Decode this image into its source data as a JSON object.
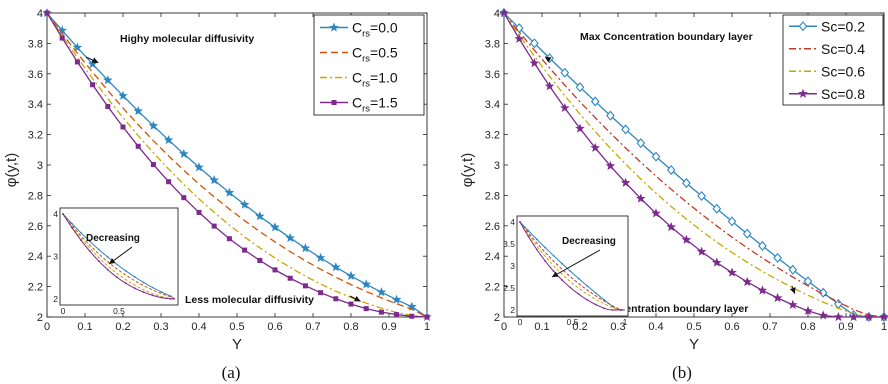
{
  "chart_data": [
    {
      "type": "line",
      "panel_label": "(a)",
      "xlabel": "Y",
      "ylabel": "φ(y,t)",
      "xlim": [
        0,
        1
      ],
      "ylim": [
        2,
        4
      ],
      "x_ticks": [
        0,
        0.1,
        0.2,
        0.3,
        0.4,
        0.5,
        0.6,
        0.7,
        0.8,
        0.9,
        1
      ],
      "x_tick_labels": [
        "0",
        "0.1",
        "0.2",
        "0.3",
        "0.4",
        "0.5",
        "0.6",
        "0.7",
        "0.8",
        "0.9",
        "1"
      ],
      "y_ticks": [
        2,
        2.2,
        2.4,
        2.6,
        2.8,
        3,
        3.2,
        3.4,
        3.6,
        3.8,
        4
      ],
      "y_tick_labels": [
        "2",
        "2.2",
        "2.4",
        "2.6",
        "2.8",
        "3",
        "3.2",
        "3.4",
        "3.6",
        "3.8",
        "4"
      ],
      "grid": false,
      "legend_position": "top-right",
      "x": [
        0,
        0.04,
        0.08,
        0.12,
        0.16,
        0.2,
        0.24,
        0.28,
        0.32,
        0.36,
        0.4,
        0.44,
        0.48,
        0.52,
        0.56,
        0.6,
        0.64,
        0.68,
        0.72,
        0.76,
        0.8,
        0.84,
        0.88,
        0.92,
        0.96,
        1
      ],
      "series": [
        {
          "legend_main": "C",
          "legend_sub": "rs",
          "legend_value": "=0.0",
          "color": "#2e86c1",
          "dash": "",
          "marker": "star",
          "values": [
            4.0,
            3.885,
            3.773,
            3.664,
            3.558,
            3.455,
            3.355,
            3.258,
            3.164,
            3.073,
            2.985,
            2.9,
            2.818,
            2.739,
            2.663,
            2.59,
            2.52,
            2.453,
            2.389,
            2.328,
            2.27,
            2.215,
            2.163,
            2.114,
            2.068,
            2.0
          ]
        },
        {
          "legend_main": "C",
          "legend_sub": "rs",
          "legend_value": "=0.5",
          "color": "#d35400",
          "dash": "7,4",
          "marker": "none",
          "values": [
            4.0,
            3.865,
            3.735,
            3.61,
            3.49,
            3.375,
            3.265,
            3.16,
            3.06,
            2.965,
            2.875,
            2.79,
            2.71,
            2.634,
            2.562,
            2.494,
            2.43,
            2.37,
            2.314,
            2.262,
            2.213,
            2.168,
            2.126,
            2.087,
            2.051,
            2.0
          ]
        },
        {
          "legend_main": "C",
          "legend_sub": "rs",
          "legend_value": "=1.0",
          "color": "#c9a800",
          "dash": "7,3,2,3",
          "marker": "none",
          "values": [
            4.0,
            3.85,
            3.706,
            3.568,
            3.437,
            3.312,
            3.193,
            3.08,
            2.973,
            2.872,
            2.777,
            2.688,
            2.605,
            2.527,
            2.455,
            2.388,
            2.326,
            2.269,
            2.217,
            2.17,
            2.128,
            2.091,
            2.058,
            2.03,
            2.01,
            2.0
          ]
        },
        {
          "legend_main": "C",
          "legend_sub": "rs",
          "legend_value": "=1.5",
          "color": "#7d2a8c",
          "dash": "",
          "marker": "square",
          "values": [
            4.0,
            3.835,
            3.678,
            3.528,
            3.385,
            3.25,
            3.123,
            3.003,
            2.89,
            2.785,
            2.688,
            2.598,
            2.515,
            2.44,
            2.372,
            2.31,
            2.255,
            2.205,
            2.16,
            2.12,
            2.085,
            2.055,
            2.032,
            2.016,
            2.005,
            2.0
          ]
        }
      ],
      "annotations": [
        {
          "text": "Highy molecular diffusivity",
          "target_x": 0.13,
          "target_y": 3.66
        },
        {
          "text": "Less molecular diffusivity",
          "target_x": 0.82,
          "target_y": 2.09
        }
      ],
      "inset": {
        "xlim": [
          0,
          1
        ],
        "ylim": [
          2,
          4
        ],
        "x_tick_labels": [
          "0",
          "0.5"
        ],
        "y_tick_labels": [
          "2",
          "3",
          "4"
        ],
        "annotation": "Decreasing"
      }
    },
    {
      "type": "line",
      "panel_label": "(b)",
      "xlabel": "Y",
      "ylabel": "φ(y,t)",
      "xlim": [
        0,
        1
      ],
      "ylim": [
        2,
        4
      ],
      "x_ticks": [
        0,
        0.1,
        0.2,
        0.3,
        0.4,
        0.5,
        0.6,
        0.7,
        0.8,
        0.9,
        1
      ],
      "x_tick_labels": [
        "0",
        "0.1",
        "0.2",
        "0.3",
        "0.4",
        "0.5",
        "0.6",
        "0.7",
        "0.8",
        "0.9",
        "1"
      ],
      "y_ticks": [
        2,
        2.2,
        2.4,
        2.6,
        2.8,
        3,
        3.2,
        3.4,
        3.6,
        3.8,
        4
      ],
      "y_tick_labels": [
        "2",
        "2.2",
        "2.4",
        "2.6",
        "2.8",
        "3",
        "3.2",
        "3.4",
        "3.6",
        "3.8",
        "4"
      ],
      "grid": false,
      "legend_position": "top-right",
      "x": [
        0,
        0.04,
        0.08,
        0.12,
        0.16,
        0.2,
        0.24,
        0.28,
        0.32,
        0.36,
        0.4,
        0.44,
        0.48,
        0.52,
        0.56,
        0.6,
        0.64,
        0.68,
        0.72,
        0.76,
        0.8,
        0.84,
        0.88,
        0.92,
        0.96,
        1
      ],
      "series": [
        {
          "legend_main": "Sc=0.2",
          "legend_sub": "",
          "legend_value": "",
          "color": "#2e86c1",
          "dash": "",
          "marker": "diamond",
          "values": [
            4.0,
            3.9,
            3.801,
            3.703,
            3.607,
            3.512,
            3.418,
            3.325,
            3.234,
            3.144,
            3.055,
            2.967,
            2.881,
            2.796,
            2.712,
            2.629,
            2.548,
            2.468,
            2.389,
            2.311,
            2.235,
            2.16,
            2.086,
            2.013,
            2.0,
            2.0
          ]
        },
        {
          "legend_main": "Sc=0.4",
          "legend_sub": "",
          "legend_value": "",
          "color": "#c0392b",
          "dash": "7,3,2,3",
          "marker": "none",
          "values": [
            4.0,
            3.875,
            3.755,
            3.638,
            3.525,
            3.416,
            3.311,
            3.21,
            3.112,
            3.018,
            2.927,
            2.84,
            2.756,
            2.676,
            2.599,
            2.525,
            2.455,
            2.388,
            2.324,
            2.263,
            2.205,
            2.15,
            2.098,
            2.049,
            2.012,
            2.0
          ]
        },
        {
          "legend_main": "Sc=0.6",
          "legend_sub": "",
          "legend_value": "",
          "color": "#c9a800",
          "dash": "7,3,2,3",
          "marker": "none",
          "values": [
            4.0,
            3.855,
            3.716,
            3.583,
            3.456,
            3.335,
            3.22,
            3.11,
            3.006,
            2.908,
            2.815,
            2.727,
            2.644,
            2.566,
            2.493,
            2.424,
            2.36,
            2.3,
            2.244,
            2.192,
            2.143,
            2.098,
            2.057,
            2.02,
            2.004,
            2.0
          ]
        },
        {
          "legend_main": "Sc=0.8",
          "legend_sub": "",
          "legend_value": "",
          "color": "#7d2a8c",
          "dash": "",
          "marker": "star",
          "values": [
            4.0,
            3.83,
            3.67,
            3.518,
            3.375,
            3.24,
            3.113,
            2.994,
            2.883,
            2.779,
            2.682,
            2.592,
            2.508,
            2.43,
            2.358,
            2.292,
            2.231,
            2.175,
            2.125,
            2.08,
            2.04,
            2.01,
            2.0,
            2.0,
            2.0,
            2.0
          ]
        }
      ],
      "annotations": [
        {
          "text": "Max Concentration boundary layer",
          "target_x": 0.1,
          "target_y": 3.7
        },
        {
          "text": "Min Concentration boundary layer",
          "target_x": 0.76,
          "target_y": 2.14
        }
      ],
      "inset": {
        "xlim": [
          0,
          1
        ],
        "ylim": [
          2,
          4
        ],
        "x_tick_labels": [
          "0",
          "0.5",
          "1"
        ],
        "y_tick_labels": [
          "2",
          "2.5",
          "3",
          "3.5",
          "4"
        ],
        "annotation": "Decreasing"
      }
    }
  ]
}
